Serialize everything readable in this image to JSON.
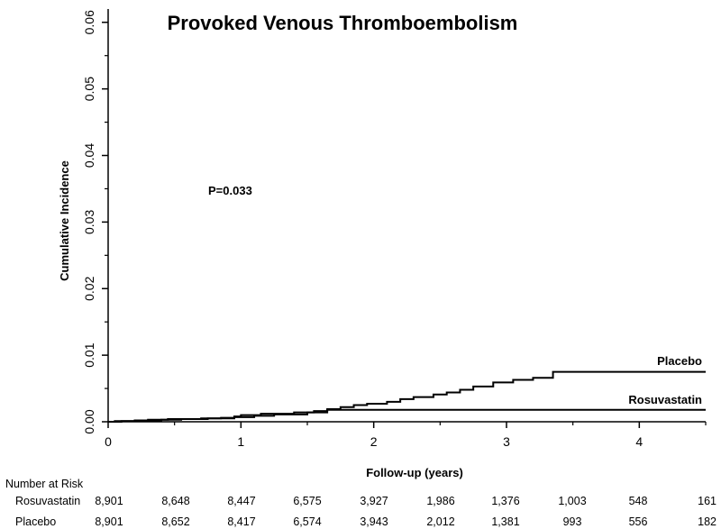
{
  "chart_data": {
    "type": "line",
    "title": "Provoked Venous Thromboembolism",
    "xlabel": "Follow-up (years)",
    "ylabel": "Cumulative Incidence",
    "xlim": [
      0,
      4.5
    ],
    "ylim": [
      0,
      0.062
    ],
    "x_ticks": [
      0,
      1,
      2,
      3,
      4
    ],
    "x_tick_labels": [
      "0",
      "1",
      "2",
      "3",
      "4"
    ],
    "y_ticks": [
      0.0,
      0.01,
      0.02,
      0.03,
      0.04,
      0.05,
      0.06
    ],
    "y_tick_labels": [
      "0.00",
      "0.01",
      "0.02",
      "0.03",
      "0.04",
      "0.05",
      "0.06"
    ],
    "grid": false,
    "annotation": "P=0.033",
    "series": [
      {
        "name": "Placebo",
        "step": true,
        "x": [
          0,
          0.05,
          0.2,
          0.3,
          0.45,
          0.7,
          0.85,
          0.95,
          1.0,
          1.15,
          1.4,
          1.55,
          1.65,
          1.75,
          1.85,
          1.95,
          2.1,
          2.2,
          2.3,
          2.45,
          2.55,
          2.65,
          2.75,
          2.9,
          3.05,
          3.2,
          3.35,
          4.5
        ],
        "y": [
          0,
          0.0001,
          0.0002,
          0.0003,
          0.0004,
          0.0005,
          0.0006,
          0.0008,
          0.001,
          0.0012,
          0.0014,
          0.0016,
          0.0019,
          0.0022,
          0.0025,
          0.0027,
          0.003,
          0.0034,
          0.0037,
          0.0041,
          0.0044,
          0.0048,
          0.0053,
          0.0059,
          0.0063,
          0.0066,
          0.0075,
          0.0075
        ]
      },
      {
        "name": "Rosuvastatin",
        "step": true,
        "x": [
          0,
          0.1,
          0.25,
          0.4,
          0.55,
          0.75,
          0.95,
          1.1,
          1.25,
          1.5,
          1.65,
          4.5
        ],
        "y": [
          0,
          0.0001,
          0.0002,
          0.0003,
          0.0004,
          0.0005,
          0.0007,
          0.0009,
          0.0011,
          0.0014,
          0.0018,
          0.0018
        ]
      }
    ]
  },
  "risk_table": {
    "title": "Number at Risk",
    "rows": [
      {
        "label": "Rosuvastatin",
        "values": [
          "8,901",
          "8,648",
          "8,447",
          "6,575",
          "3,927",
          "1,986",
          "1,376",
          "1,003",
          "548",
          "161"
        ]
      },
      {
        "label": "Placebo",
        "values": [
          "8,901",
          "8,652",
          "8,417",
          "6,574",
          "3,943",
          "2,012",
          "1,381",
          "993",
          "556",
          "182"
        ]
      }
    ]
  }
}
